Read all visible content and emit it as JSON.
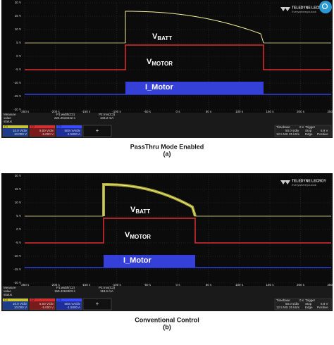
{
  "panels": [
    {
      "y_axis_labels": [
        "20 V",
        "15 V",
        "10 V",
        "5 V",
        "0 V",
        "-5 V",
        "-10 V",
        "-15 V",
        "-20 V"
      ],
      "x_axis_labels": [
        "-250 s",
        "-200 s",
        "-150 s",
        "-100 s",
        "-50 s",
        "0 s",
        "50 s",
        "100 s",
        "150 s",
        "200 s",
        "250 s"
      ],
      "logo": {
        "brand": "TELEDYNE LECROY",
        "tagline": "Everywhereyoulook"
      },
      "trace_labels": {
        "vbatt": {
          "main": "V",
          "sub": "BATT"
        },
        "vmotor": {
          "main": "V",
          "sub": "MOTOR"
        },
        "imotor": "I_Motor"
      },
      "measure": {
        "rows": [
          "Measure",
          "value",
          "status"
        ],
        "p1_name": "P1:width(C2)",
        "p1_value": "224.2510242 s",
        "p2_name": "P2:rms(C3)",
        "p2_value": "103.2 mA"
      },
      "channels": [
        {
          "id": "C1",
          "scale": "10.0 V/div",
          "offset": "10.000 V"
        },
        {
          "id": "C2",
          "scale": "5.00 V/div",
          "offset": "-5.000 V"
        },
        {
          "id": "C3",
          "scale": "500 mA/div",
          "offset": "-1.5000 A"
        }
      ],
      "add_button": "+",
      "timebase": {
        "label": "Timebase",
        "delay": "0 s",
        "trigger": "Trigger",
        "rate": "50.0 s/div",
        "mode": "Stop",
        "level": "5.9 V",
        "samples": "12.5 MS",
        "sample_rate": "25 kS/s",
        "type": "Edge",
        "slope": "Positive"
      },
      "caption": "PassThru Mode Enabled",
      "tag": "(a)"
    },
    {
      "y_axis_labels": [
        "20 V",
        "15 V",
        "10 V",
        "5 V",
        "0 V",
        "-5 V",
        "-10 V",
        "-15 V",
        "-20 V"
      ],
      "x_axis_labels": [
        "-250 s",
        "-200 s",
        "-150 s",
        "-100 s",
        "-50 s",
        "0 s",
        "50 s",
        "100 s",
        "150 s",
        "200 s",
        "250 s"
      ],
      "logo": {
        "brand": "TELEDYNE LECROY",
        "tagline": "Everywhereyoulook"
      },
      "trace_labels": {
        "vbatt": {
          "main": "V",
          "sub": "BATT"
        },
        "vmotor": {
          "main": "V",
          "sub": "MOTOR"
        },
        "imotor": "I_Motor"
      },
      "measure": {
        "rows": [
          "Measure",
          "value",
          "status"
        ],
        "p1_name": "P1:width(C2)",
        "p1_value": "150.4263403 s",
        "p2_name": "P2:rms(C3)",
        "p2_value": "118.6 mA"
      },
      "channels": [
        {
          "id": "C1",
          "scale": "10.0 V/div",
          "offset": "10.000 V"
        },
        {
          "id": "C2",
          "scale": "5.00 V/div",
          "offset": "-5.000 V"
        },
        {
          "id": "C3",
          "scale": "500 mA/div",
          "offset": "-1.5000 A"
        }
      ],
      "add_button": "+",
      "timebase": {
        "label": "Timebase",
        "delay": "0 s",
        "trigger": "Trigger",
        "rate": "50.0 s/div",
        "mode": "Stop",
        "level": "5.9 V",
        "samples": "12.5 MS",
        "sample_rate": "25 kS/s",
        "type": "Edge",
        "slope": "Positive"
      },
      "caption": "Conventional Control",
      "tag": "(b)"
    }
  ]
}
